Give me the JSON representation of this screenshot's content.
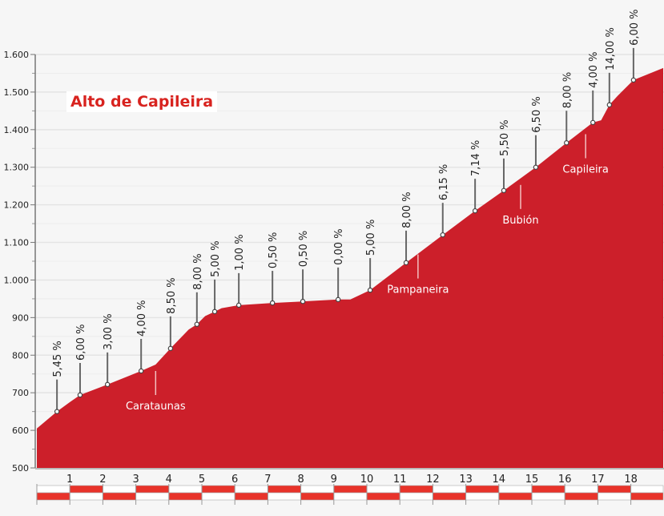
{
  "chart_data": {
    "type": "area",
    "title": "Alto de Capileira",
    "xlabel": "",
    "ylabel": "",
    "xlim": [
      0,
      19
    ],
    "ylim": [
      500,
      1600
    ],
    "grid": true,
    "x_ticks": [
      1,
      2,
      3,
      4,
      5,
      6,
      7,
      8,
      9,
      10,
      11,
      12,
      13,
      14,
      15,
      16,
      17,
      18
    ],
    "y_ticks": [
      {
        "value": 500,
        "label": "500"
      },
      {
        "value": 600,
        "label": "600"
      },
      {
        "value": 700,
        "label": "700"
      },
      {
        "value": 800,
        "label": "800"
      },
      {
        "value": 900,
        "label": "900"
      },
      {
        "value": 1000,
        "label": "1.000"
      },
      {
        "value": 1100,
        "label": "1.100"
      },
      {
        "value": 1200,
        "label": "1.200"
      },
      {
        "value": 1300,
        "label": "1.300"
      },
      {
        "value": 1400,
        "label": "1.400"
      },
      {
        "value": 1500,
        "label": "1.500"
      },
      {
        "value": 1600,
        "label": "1.600"
      }
    ],
    "profile": [
      [
        0,
        605
      ],
      [
        0.61,
        650
      ],
      [
        1.0,
        675
      ],
      [
        1.31,
        694
      ],
      [
        2.14,
        722
      ],
      [
        3.16,
        758
      ],
      [
        3.6,
        775
      ],
      [
        4.05,
        818
      ],
      [
        4.6,
        868
      ],
      [
        4.85,
        882
      ],
      [
        5.1,
        904
      ],
      [
        5.39,
        916
      ],
      [
        5.6,
        925
      ],
      [
        6.12,
        933
      ],
      [
        7.14,
        939
      ],
      [
        8.06,
        943
      ],
      [
        9.13,
        948
      ],
      [
        9.5,
        948
      ],
      [
        10.1,
        973
      ],
      [
        11.19,
        1046
      ],
      [
        12.3,
        1120
      ],
      [
        13.28,
        1184
      ],
      [
        14.15,
        1238
      ],
      [
        15.12,
        1300
      ],
      [
        16.05,
        1365
      ],
      [
        16.85,
        1419
      ],
      [
        17.1,
        1425
      ],
      [
        17.35,
        1466
      ],
      [
        17.6,
        1490
      ],
      [
        18.08,
        1532
      ],
      [
        18.98,
        1564
      ]
    ],
    "grades": [
      {
        "km": 0.61,
        "elev": 650,
        "label": "5,45 %"
      },
      {
        "km": 1.31,
        "elev": 694,
        "label": "6,00 %"
      },
      {
        "km": 2.14,
        "elev": 722,
        "label": "3,00 %"
      },
      {
        "km": 3.16,
        "elev": 758,
        "label": "4,00 %"
      },
      {
        "km": 4.05,
        "elev": 818,
        "label": "8,50 %"
      },
      {
        "km": 4.85,
        "elev": 882,
        "label": "8,00 %"
      },
      {
        "km": 5.39,
        "elev": 916,
        "label": "5,00 %"
      },
      {
        "km": 6.12,
        "elev": 933,
        "label": "1,00 %"
      },
      {
        "km": 7.14,
        "elev": 939,
        "label": "0,50 %"
      },
      {
        "km": 8.06,
        "elev": 943,
        "label": "0,50 %"
      },
      {
        "km": 9.13,
        "elev": 948,
        "label": "0,00 %"
      },
      {
        "km": 10.1,
        "elev": 973,
        "label": "5,00 %"
      },
      {
        "km": 11.19,
        "elev": 1046,
        "label": "8,00 %"
      },
      {
        "km": 12.3,
        "elev": 1120,
        "label": "6,15 %"
      },
      {
        "km": 13.28,
        "elev": 1184,
        "label": "7,14 %"
      },
      {
        "km": 14.15,
        "elev": 1238,
        "label": "5,50 %"
      },
      {
        "km": 15.12,
        "elev": 1300,
        "label": "6,50 %"
      },
      {
        "km": 16.05,
        "elev": 1365,
        "label": "8,00 %"
      },
      {
        "km": 16.85,
        "elev": 1419,
        "label": "4,00 %"
      },
      {
        "km": 17.35,
        "elev": 1466,
        "label": "14,00 %",
        "highlight": true
      },
      {
        "km": 18.08,
        "elev": 1532,
        "label": "6,00 %"
      }
    ],
    "places": [
      {
        "km": 3.6,
        "elev": 775,
        "name": "Carataunas"
      },
      {
        "km": 11.55,
        "elev": 1085,
        "name": "Pampaneira"
      },
      {
        "km": 14.66,
        "elev": 1270,
        "name": "Bubión"
      },
      {
        "km": 16.63,
        "elev": 1405,
        "name": "Capileira"
      }
    ],
    "colors": {
      "fill": "#cc1f2a",
      "highlight": "#e8332a",
      "title": "#d8231f"
    }
  }
}
